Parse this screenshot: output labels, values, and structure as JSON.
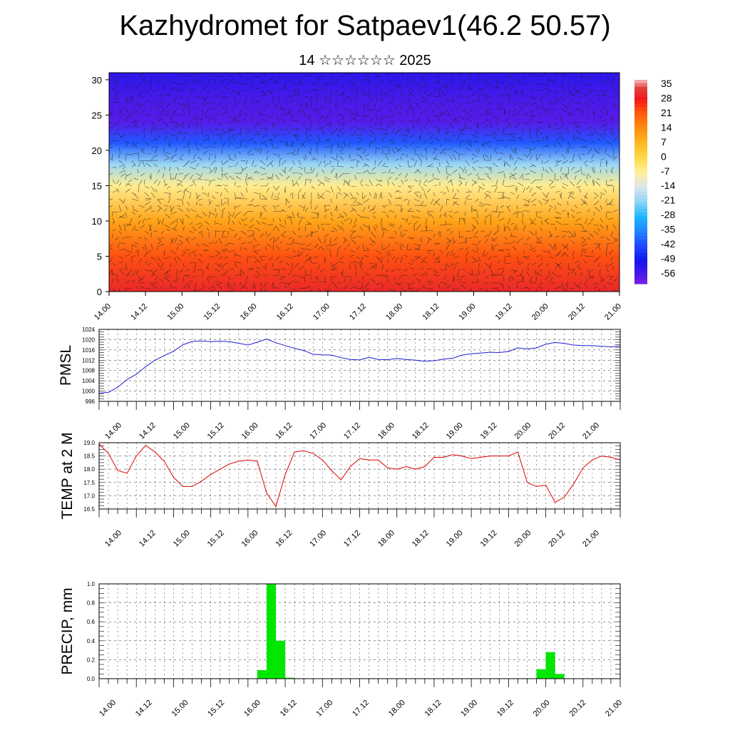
{
  "header": {
    "title": "Kazhydromet for Satpaev1(46.2 50.57)",
    "subtitle": "14 ☆☆☆☆☆☆ 2025"
  },
  "x_ticks": [
    "14.00",
    "14.12",
    "15.00",
    "15.12",
    "16.00",
    "16.12",
    "17.00",
    "17.12",
    "18.00",
    "18.12",
    "19.00",
    "19.12",
    "20.00",
    "20.12",
    "21.00"
  ],
  "chart_data": [
    {
      "type": "heatmap",
      "title": "",
      "ylabel": "",
      "ylim": [
        0,
        31
      ],
      "y_ticks": [
        0,
        5,
        10,
        15,
        20,
        25,
        30
      ],
      "x_ticks": [
        "14.00",
        "14.12",
        "15.00",
        "15.12",
        "16.00",
        "16.12",
        "17.00",
        "17.12",
        "18.00",
        "18.12",
        "19.00",
        "19.12",
        "20.00",
        "20.12",
        "21.00"
      ],
      "colorbar_labels": [
        "35",
        "28",
        "21",
        "14",
        "7",
        "0",
        "-7",
        "-14",
        "-21",
        "-28",
        "-35",
        "-42",
        "-49",
        "-56"
      ],
      "colorbar_range": [
        -60,
        37
      ],
      "vertical_temperature_profile": [
        {
          "height": 0,
          "value": 30
        },
        {
          "height": 5,
          "value": 22
        },
        {
          "height": 10,
          "value": 10
        },
        {
          "height": 15,
          "value": -6
        },
        {
          "height": 18,
          "value": -20
        },
        {
          "height": 21,
          "value": -40
        },
        {
          "height": 24,
          "value": -57
        },
        {
          "height": 27,
          "value": -56
        },
        {
          "height": 31,
          "value": -52
        }
      ],
      "overlay": "wind vectors"
    },
    {
      "type": "line",
      "ylabel": "PMSL",
      "ylim": [
        996,
        1024
      ],
      "y_ticks": [
        996,
        1000,
        1004,
        1008,
        1012,
        1016,
        1020,
        1024
      ],
      "grid": true,
      "series": [
        {
          "color": "#1f1fd0",
          "x": [
            0,
            3,
            6,
            9,
            12,
            15,
            18,
            21,
            24,
            27,
            30,
            33,
            36,
            39,
            42,
            45,
            48,
            51,
            54,
            57,
            60,
            63,
            66,
            69,
            72,
            75,
            78,
            81,
            84,
            87,
            90,
            93,
            96,
            99,
            102,
            105,
            108,
            111,
            114,
            117,
            120,
            123,
            126,
            129,
            132,
            135,
            138,
            141,
            144,
            147,
            150,
            153,
            156,
            159,
            162,
            165,
            168
          ],
          "values": [
            999.2,
            999.5,
            1001.5,
            1004.5,
            1006.5,
            1009.5,
            1012,
            1013.8,
            1015.5,
            1018,
            1019.3,
            1019.5,
            1019.2,
            1019.4,
            1019.2,
            1018.6,
            1017.9,
            1019.0,
            1020.2,
            1018.8,
            1017.7,
            1016.6,
            1015.8,
            1014.3,
            1014.1,
            1014.0,
            1013.0,
            1012.3,
            1012.1,
            1013.1,
            1012.3,
            1012.2,
            1012.7,
            1012.3,
            1012.0,
            1011.6,
            1011.8,
            1012.4,
            1012.8,
            1014.0,
            1014.5,
            1014.8,
            1015.1,
            1015.0,
            1015.4,
            1016.8,
            1016.4,
            1016.8,
            1018.2,
            1018.9,
            1018.5,
            1017.9,
            1017.7,
            1017.7,
            1017.4,
            1017.2,
            1017.5
          ]
        }
      ]
    },
    {
      "type": "line",
      "ylabel": "TEMP at 2 M",
      "ylim": [
        16.5,
        19.0
      ],
      "y_ticks": [
        16.5,
        17.0,
        17.5,
        18.0,
        18.5,
        19.0
      ],
      "grid": true,
      "series": [
        {
          "color": "#e00000",
          "x": [
            0,
            3,
            6,
            9,
            12,
            15,
            18,
            21,
            24,
            27,
            30,
            33,
            36,
            39,
            42,
            45,
            48,
            51,
            54,
            57,
            60,
            63,
            66,
            69,
            72,
            75,
            78,
            81,
            84,
            87,
            90,
            93,
            96,
            99,
            102,
            105,
            108,
            111,
            114,
            117,
            120,
            123,
            126,
            129,
            132,
            135,
            138,
            141,
            144,
            147,
            150,
            153,
            156,
            159,
            162,
            165,
            168
          ],
          "values": [
            18.95,
            18.6,
            17.95,
            17.85,
            18.5,
            18.9,
            18.65,
            18.3,
            17.7,
            17.35,
            17.35,
            17.55,
            17.8,
            18.0,
            18.2,
            18.3,
            18.35,
            18.3,
            17.1,
            16.6,
            17.8,
            18.65,
            18.7,
            18.6,
            18.35,
            17.95,
            17.6,
            18.1,
            18.4,
            18.35,
            18.35,
            18.05,
            18.0,
            18.1,
            18.0,
            18.1,
            18.45,
            18.45,
            18.55,
            18.5,
            18.4,
            18.45,
            18.5,
            18.5,
            18.5,
            18.65,
            17.5,
            17.35,
            17.4,
            16.75,
            16.95,
            17.45,
            18.05,
            18.35,
            18.5,
            18.45,
            18.35
          ]
        }
      ]
    },
    {
      "type": "bar",
      "ylabel": "PRECIP, mm",
      "ylim": [
        0,
        1.0
      ],
      "y_ticks": [
        0.0,
        0.2,
        0.4,
        0.6,
        0.8,
        1.0
      ],
      "grid": true,
      "bar_color": "#00e600",
      "bars": [
        {
          "x_start": 51,
          "x_end": 54,
          "value": 0.09
        },
        {
          "x_start": 54,
          "x_end": 57,
          "value": 1.0
        },
        {
          "x_start": 57,
          "x_end": 60,
          "value": 0.4
        },
        {
          "x_start": 60,
          "x_end": 63,
          "value": 0.01
        },
        {
          "x_start": 141,
          "x_end": 144,
          "value": 0.1
        },
        {
          "x_start": 144,
          "x_end": 147,
          "value": 0.28
        },
        {
          "x_start": 147,
          "x_end": 150,
          "value": 0.05
        }
      ]
    }
  ]
}
